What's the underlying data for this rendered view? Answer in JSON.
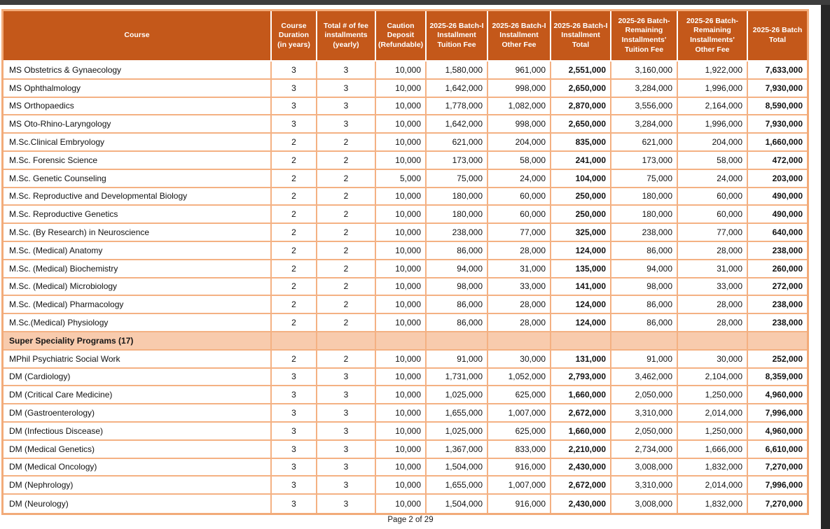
{
  "page": {
    "footer": "Page 2 of 29"
  },
  "colors": {
    "header_bg": "#c4581a",
    "table_border": "#f4b183",
    "section_row_bg": "#f8cbad",
    "viewer_background": "#262626"
  },
  "table": {
    "columns": [
      "Course",
      "Course Duration (in years)",
      "Total # of fee installments (yearly)",
      "Caution Deposit (Refundable)",
      "2025-26 Batch-I Installment Tuition Fee",
      "2025-26  Batch-I Installment Other Fee",
      "2025-26  Batch-I Installment Total",
      "2025-26 Batch-Remaining Installments' Tuition Fee",
      "2025-26 Batch-Remaining Installments' Other Fee",
      "2025-26 Batch Total"
    ],
    "rows": [
      {
        "cells": [
          "MS Obstetrics & Gynaecology",
          "3",
          "3",
          "10,000",
          "1,580,000",
          "961,000",
          "2,551,000",
          "3,160,000",
          "1,922,000",
          "7,633,000"
        ]
      },
      {
        "cells": [
          "MS Ophthalmology",
          "3",
          "3",
          "10,000",
          "1,642,000",
          "998,000",
          "2,650,000",
          "3,284,000",
          "1,996,000",
          "7,930,000"
        ]
      },
      {
        "cells": [
          "MS Orthopaedics",
          "3",
          "3",
          "10,000",
          "1,778,000",
          "1,082,000",
          "2,870,000",
          "3,556,000",
          "2,164,000",
          "8,590,000"
        ]
      },
      {
        "cells": [
          "MS Oto-Rhino-Laryngology",
          "3",
          "3",
          "10,000",
          "1,642,000",
          "998,000",
          "2,650,000",
          "3,284,000",
          "1,996,000",
          "7,930,000"
        ]
      },
      {
        "cells": [
          "M.Sc.Clinical Embryology",
          "2",
          "2",
          "10,000",
          "621,000",
          "204,000",
          "835,000",
          "621,000",
          "204,000",
          "1,660,000"
        ]
      },
      {
        "cells": [
          "M.Sc. Forensic Science",
          "2",
          "2",
          "10,000",
          "173,000",
          "58,000",
          "241,000",
          "173,000",
          "58,000",
          "472,000"
        ]
      },
      {
        "cells": [
          "M.Sc. Genetic Counseling",
          "2",
          "2",
          "5,000",
          "75,000",
          "24,000",
          "104,000",
          "75,000",
          "24,000",
          "203,000"
        ]
      },
      {
        "cells": [
          "M.Sc. Reproductive and Developmental Biology",
          "2",
          "2",
          "10,000",
          "180,000",
          "60,000",
          "250,000",
          "180,000",
          "60,000",
          "490,000"
        ]
      },
      {
        "cells": [
          "M.Sc. Reproductive Genetics",
          "2",
          "2",
          "10,000",
          "180,000",
          "60,000",
          "250,000",
          "180,000",
          "60,000",
          "490,000"
        ]
      },
      {
        "cells": [
          "M.Sc. (By Research) in Neuroscience",
          "2",
          "2",
          "10,000",
          "238,000",
          "77,000",
          "325,000",
          "238,000",
          "77,000",
          "640,000"
        ]
      },
      {
        "cells": [
          "M.Sc. (Medical) Anatomy",
          "2",
          "2",
          "10,000",
          "86,000",
          "28,000",
          "124,000",
          "86,000",
          "28,000",
          "238,000"
        ]
      },
      {
        "cells": [
          "M.Sc. (Medical) Biochemistry",
          "2",
          "2",
          "10,000",
          "94,000",
          "31,000",
          "135,000",
          "94,000",
          "31,000",
          "260,000"
        ]
      },
      {
        "cells": [
          "M.Sc. (Medical) Microbiology",
          "2",
          "2",
          "10,000",
          "98,000",
          "33,000",
          "141,000",
          "98,000",
          "33,000",
          "272,000"
        ]
      },
      {
        "cells": [
          "M.Sc. (Medical) Pharmacology",
          "2",
          "2",
          "10,000",
          "86,000",
          "28,000",
          "124,000",
          "86,000",
          "28,000",
          "238,000"
        ]
      },
      {
        "cells": [
          "M.Sc.(Medical) Physiology",
          "2",
          "2",
          "10,000",
          "86,000",
          "28,000",
          "124,000",
          "86,000",
          "28,000",
          "238,000"
        ]
      },
      {
        "section": "Super Speciality Programs (17)"
      },
      {
        "cells": [
          "MPhil Psychiatric Social Work",
          "2",
          "2",
          "10,000",
          "91,000",
          "30,000",
          "131,000",
          "91,000",
          "30,000",
          "252,000"
        ]
      },
      {
        "cells": [
          "DM (Cardiology)",
          "3",
          "3",
          "10,000",
          "1,731,000",
          "1,052,000",
          "2,793,000",
          "3,462,000",
          "2,104,000",
          "8,359,000"
        ]
      },
      {
        "cells": [
          "DM (Critical Care Medicine)",
          "3",
          "3",
          "10,000",
          "1,025,000",
          "625,000",
          "1,660,000",
          "2,050,000",
          "1,250,000",
          "4,960,000"
        ]
      },
      {
        "cells": [
          "DM (Gastroenterology)",
          "3",
          "3",
          "10,000",
          "1,655,000",
          "1,007,000",
          "2,672,000",
          "3,310,000",
          "2,014,000",
          "7,996,000"
        ]
      },
      {
        "cells": [
          "DM (Infectious Discease)",
          "3",
          "3",
          "10,000",
          "1,025,000",
          "625,000",
          "1,660,000",
          "2,050,000",
          "1,250,000",
          "4,960,000"
        ]
      },
      {
        "cells": [
          "DM (Medical Genetics)",
          "3",
          "3",
          "10,000",
          "1,367,000",
          "833,000",
          "2,210,000",
          "2,734,000",
          "1,666,000",
          "6,610,000"
        ]
      },
      {
        "cells": [
          "DM (Medical Oncology)",
          "3",
          "3",
          "10,000",
          "1,504,000",
          "916,000",
          "2,430,000",
          "3,008,000",
          "1,832,000",
          "7,270,000"
        ]
      },
      {
        "cells": [
          "DM (Nephrology)",
          "3",
          "3",
          "10,000",
          "1,655,000",
          "1,007,000",
          "2,672,000",
          "3,310,000",
          "2,014,000",
          "7,996,000"
        ]
      },
      {
        "cells": [
          "DM (Neurology)",
          "3",
          "3",
          "10,000",
          "1,504,000",
          "916,000",
          "2,430,000",
          "3,008,000",
          "1,832,000",
          "7,270,000"
        ]
      }
    ]
  }
}
